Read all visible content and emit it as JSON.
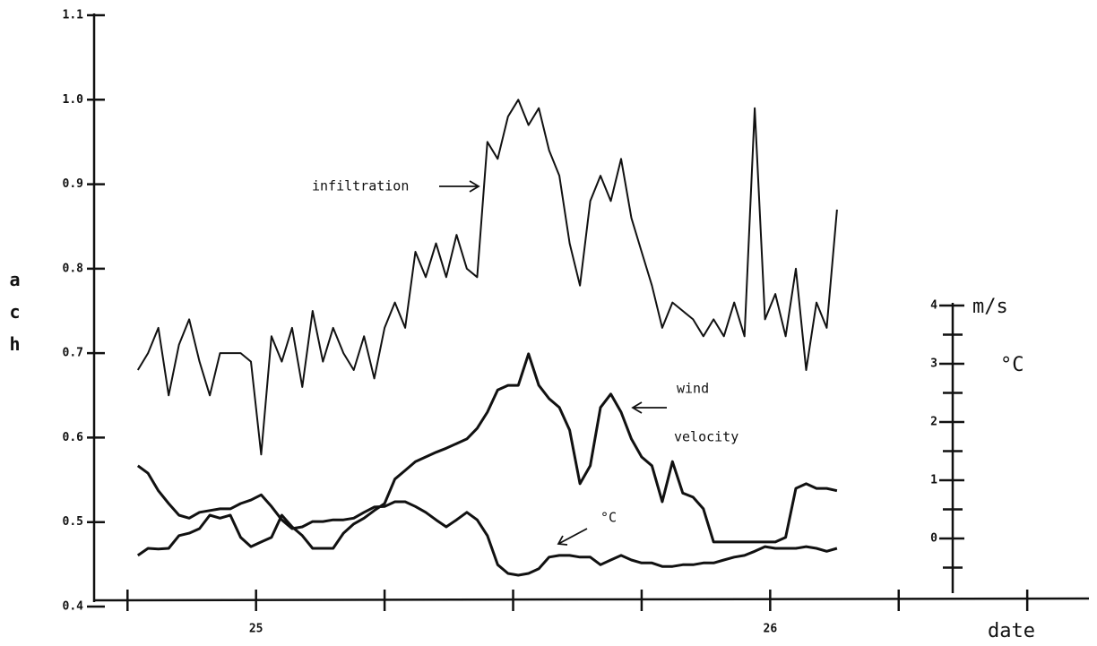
{
  "chart_data": {
    "type": "line",
    "y_label": "ach",
    "x_label": "date",
    "y2_labels": [
      "m/s",
      "°C"
    ],
    "annotations": [
      "infiltration",
      "wind",
      "velocity",
      "°C"
    ],
    "x": [
      24.77,
      24.79,
      24.81,
      24.83,
      24.85,
      24.87,
      24.89,
      24.91,
      24.93,
      24.95,
      24.97,
      24.99,
      25.01,
      25.03,
      25.05,
      25.07,
      25.09,
      25.11,
      25.13,
      25.15,
      25.17,
      25.19,
      25.21,
      25.23,
      25.25,
      25.27,
      25.29,
      25.31,
      25.33,
      25.35,
      25.37,
      25.39,
      25.41,
      25.43,
      25.45,
      25.47,
      25.49,
      25.51,
      25.53,
      25.55,
      25.57,
      25.59,
      25.61,
      25.63,
      25.65,
      25.67,
      25.69,
      25.71,
      25.73,
      25.75,
      25.77,
      25.79,
      25.81,
      25.83,
      25.85,
      25.87,
      25.89,
      25.91,
      25.93,
      25.95,
      25.97,
      25.99,
      26.01,
      26.03,
      26.05,
      26.07,
      26.09,
      26.11,
      26.13
    ],
    "xlim": [
      24.685,
      26.62
    ],
    "xticks": [
      25,
      26
    ],
    "x_minor_ticks": [
      24.75,
      25.25,
      25.5,
      25.75,
      26.25,
      26.5
    ],
    "ylim": [
      0.4,
      1.1
    ],
    "yticks": [
      0.4,
      0.5,
      0.6,
      0.7,
      0.8,
      0.9,
      {
        "value": 1,
        "label": "1.0"
      },
      1.1
    ],
    "y2lim": [
      -0.9,
      4
    ],
    "y2ticks": [
      0,
      1,
      2,
      3,
      4
    ],
    "y2_minor_ticks": [
      -0.5,
      0.5,
      1.5,
      2.5,
      3.5
    ],
    "series": [
      {
        "color": "#111111",
        "axis": "y",
        "values": [
          0.68,
          0.7,
          0.73,
          0.65,
          0.71,
          0.74,
          0.69,
          0.65,
          0.7,
          0.7,
          0.7,
          0.69,
          0.58,
          0.72,
          0.69,
          0.73,
          0.66,
          0.75,
          0.69,
          0.73,
          0.7,
          0.68,
          0.72,
          0.67,
          0.73,
          0.76,
          0.73,
          0.82,
          0.79,
          0.83,
          0.79,
          0.84,
          0.8,
          0.79,
          0.95,
          0.93,
          0.98,
          1.0,
          0.97,
          0.99,
          0.94,
          0.91,
          0.83,
          0.78,
          0.88,
          0.91,
          0.88,
          0.93,
          0.86,
          0.82,
          0.78,
          0.73,
          0.76,
          0.75,
          0.74,
          0.72,
          0.74,
          0.72,
          0.76,
          0.72,
          0.99,
          0.74,
          0.77,
          0.72,
          0.8,
          0.68,
          0.76,
          0.73,
          0.87
        ]
      },
      {
        "color": "#111111",
        "axis": "y2",
        "values": [
          -0.29,
          -0.17,
          -0.18,
          -0.17,
          0.05,
          0.09,
          0.17,
          0.4,
          0.35,
          0.4,
          0.02,
          -0.14,
          -0.06,
          0.02,
          0.4,
          0.2,
          0.05,
          -0.17,
          -0.17,
          -0.17,
          0.09,
          0.25,
          0.35,
          0.48,
          0.6,
          1.02,
          1.17,
          1.32,
          1.4,
          1.48,
          1.55,
          1.63,
          1.71,
          1.89,
          2.17,
          2.55,
          2.63,
          2.63,
          3.17,
          2.63,
          2.4,
          2.25,
          1.86,
          0.94,
          1.25,
          2.25,
          2.48,
          2.17,
          1.71,
          1.4,
          1.25,
          0.63,
          1.32,
          0.78,
          0.71,
          0.51,
          -0.06,
          -0.06,
          -0.06,
          -0.06,
          -0.06,
          -0.06,
          -0.06,
          0.02,
          0.86,
          0.94,
          0.86,
          0.86,
          0.82
        ]
      },
      {
        "color": "#111111",
        "axis": "y2",
        "values": [
          1.25,
          1.12,
          0.82,
          0.6,
          0.4,
          0.35,
          0.45,
          0.48,
          0.51,
          0.51,
          0.6,
          0.66,
          0.75,
          0.55,
          0.32,
          0.17,
          0.2,
          0.29,
          0.29,
          0.32,
          0.32,
          0.35,
          0.45,
          0.54,
          0.55,
          0.63,
          0.63,
          0.55,
          0.45,
          0.32,
          0.2,
          0.32,
          0.45,
          0.32,
          0.05,
          -0.45,
          -0.6,
          -0.63,
          -0.6,
          -0.52,
          -0.32,
          -0.29,
          -0.29,
          -0.32,
          -0.32,
          -0.45,
          -0.37,
          -0.29,
          -0.37,
          -0.42,
          -0.42,
          -0.48,
          -0.48,
          -0.45,
          -0.45,
          -0.42,
          -0.42,
          -0.37,
          -0.32,
          -0.29,
          -0.22,
          -0.14,
          -0.17,
          -0.17,
          -0.17,
          -0.14,
          -0.17,
          -0.22,
          -0.17
        ]
      }
    ]
  }
}
